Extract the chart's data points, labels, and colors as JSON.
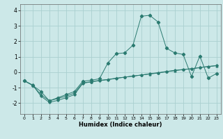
{
  "title": "",
  "xlabel": "Humidex (Indice chaleur)",
  "bg_color": "#cce8e8",
  "grid_color": "#aad0d0",
  "line_color": "#2a7a70",
  "xlim": [
    -0.5,
    23.5
  ],
  "ylim": [
    -2.7,
    4.4
  ],
  "xticks": [
    0,
    1,
    2,
    3,
    4,
    5,
    6,
    7,
    8,
    9,
    10,
    11,
    12,
    13,
    14,
    15,
    16,
    17,
    18,
    19,
    20,
    21,
    22,
    23
  ],
  "yticks": [
    -2,
    -1,
    0,
    1,
    2,
    3,
    4
  ],
  "line1_x": [
    0,
    1,
    2,
    3,
    4,
    5,
    6,
    7,
    8,
    9,
    10,
    11,
    12,
    13,
    14,
    15,
    16,
    17,
    18,
    19,
    20,
    21,
    22,
    23
  ],
  "line1_y": [
    -0.55,
    -0.85,
    -1.45,
    -1.85,
    -1.7,
    -1.55,
    -1.35,
    -0.68,
    -0.62,
    -0.52,
    -0.47,
    -0.38,
    -0.32,
    -0.25,
    -0.18,
    -0.12,
    -0.05,
    0.03,
    0.1,
    0.17,
    0.22,
    0.3,
    0.37,
    0.42
  ],
  "line2_x": [
    0,
    1,
    2,
    3,
    4,
    5,
    6,
    7,
    8,
    9,
    10,
    11,
    12,
    13,
    14,
    15,
    16,
    17,
    18,
    19,
    20,
    21,
    22,
    23
  ],
  "line2_y": [
    -0.55,
    -0.85,
    -1.25,
    -1.85,
    -1.65,
    -1.45,
    -1.25,
    -0.58,
    -0.52,
    -0.42,
    0.6,
    1.2,
    1.25,
    1.75,
    3.62,
    3.68,
    3.25,
    1.55,
    1.25,
    1.15,
    -0.28,
    1.05,
    -0.38,
    -0.08
  ],
  "line3_x": [
    0,
    1,
    2,
    3,
    4,
    5,
    6,
    7,
    8,
    9,
    10,
    11,
    12,
    13,
    14,
    15,
    16,
    17,
    18,
    19,
    20,
    21,
    22,
    23
  ],
  "line3_y": [
    -0.55,
    -0.82,
    -1.55,
    -1.95,
    -1.82,
    -1.65,
    -1.45,
    -0.72,
    -0.62,
    -0.55,
    -0.48,
    -0.4,
    -0.32,
    -0.25,
    -0.18,
    -0.1,
    -0.03,
    0.05,
    0.12,
    0.18,
    0.23,
    0.3,
    0.37,
    0.43
  ]
}
